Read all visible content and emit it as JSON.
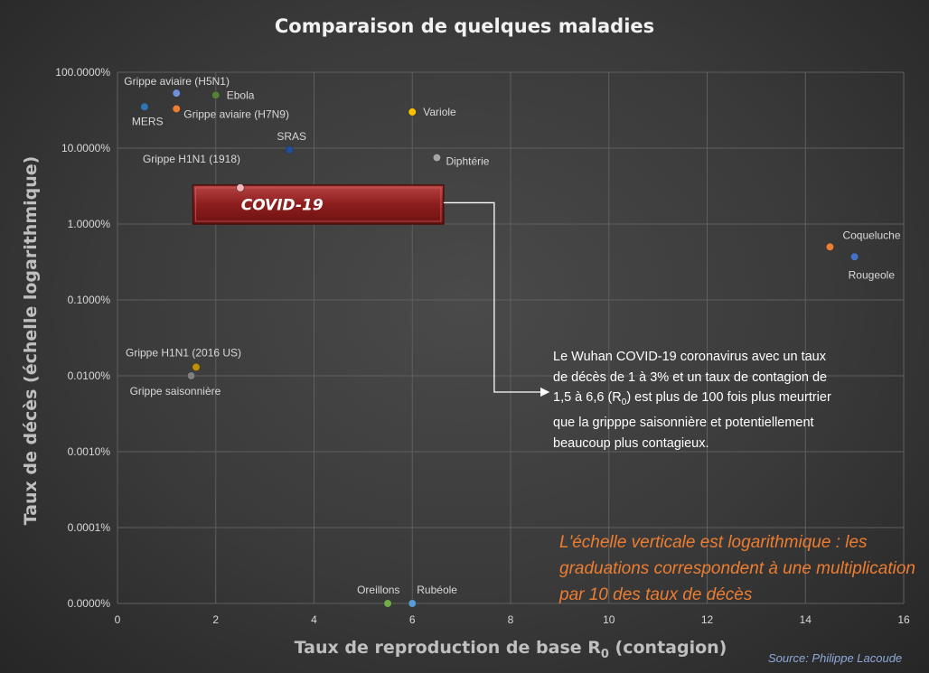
{
  "chart_data": {
    "type": "scatter",
    "title": "Comparaison de quelques maladies",
    "xlabel_prefix": "Taux de reproduction de base R",
    "xlabel_sub": "0",
    "xlabel_suffix": " (contagion)",
    "ylabel": "Taux de décès (échelle logarithmique)",
    "x_ticks": [
      "0",
      "2",
      "4",
      "6",
      "8",
      "10",
      "12",
      "14",
      "16"
    ],
    "xlim": [
      0,
      16
    ],
    "y_scale": "log",
    "y_ticks": [
      "100.0000%",
      "10.0000%",
      "1.0000%",
      "0.1000%",
      "0.0100%",
      "0.0010%",
      "0.0001%",
      "0.0000%"
    ],
    "grid": true,
    "points": [
      {
        "name": "MERS",
        "x": 0.55,
        "y": 35,
        "color": "#2e75b6"
      },
      {
        "name": "Grippe aviaire (H5N1)",
        "x": 1.2,
        "y": 53,
        "color": "#6f8fd8"
      },
      {
        "name": "Ebola",
        "x": 2.0,
        "y": 50,
        "color": "#548235"
      },
      {
        "name": "Grippe aviaire (H7N9)",
        "x": 1.2,
        "y": 33,
        "color": "#ed7d31"
      },
      {
        "name": "Variole",
        "x": 6.0,
        "y": 30,
        "color": "#ffc000"
      },
      {
        "name": "SRAS",
        "x": 3.5,
        "y": 9.5,
        "color": "#1f4e9a"
      },
      {
        "name": "Diphtérie",
        "x": 6.5,
        "y": 7.5,
        "color": "#a5a5a5"
      },
      {
        "name": "Grippe H1N1 (1918)",
        "x": 2.5,
        "y": 3.0,
        "color": "#f4b6b6"
      },
      {
        "name": "Coqueluche",
        "x": 14.5,
        "y": 0.5,
        "color": "#ed7d31"
      },
      {
        "name": "Rougeole",
        "x": 15.0,
        "y": 0.37,
        "color": "#4472c4"
      },
      {
        "name": "Grippe H1N1 (2016 US)",
        "x": 1.6,
        "y": 0.013,
        "color": "#bf9000"
      },
      {
        "name": "Grippe saisonnière",
        "x": 1.5,
        "y": 0.01,
        "color": "#7f7f7f"
      },
      {
        "name": "Oreillons",
        "x": 5.5,
        "y": 0,
        "color": "#70ad47"
      },
      {
        "name": "Rubéole",
        "x": 6.0,
        "y": 0,
        "color": "#5b9bd5"
      }
    ],
    "highlight": {
      "label": "COVID-19",
      "x_range": [
        1.5,
        6.6
      ],
      "y_range": [
        1,
        3
      ]
    },
    "annotation_lines": [
      "Le Wuhan COVID-19 coronavirus avec un taux",
      "de décès de 1 à 3% et un taux de contagion de",
      "1,5 à 6,6 (R",
      "0",
      ") est plus de 100 fois plus meurtrier",
      "que la gripppe saisonnière et potentiellement",
      "beaucoup plus contagieux."
    ],
    "log_note": "L'échelle verticale est logarithmique : les graduations correspondent à une multiplication par 10 des taux de décès",
    "source": "Source: Philippe Lacoude"
  }
}
